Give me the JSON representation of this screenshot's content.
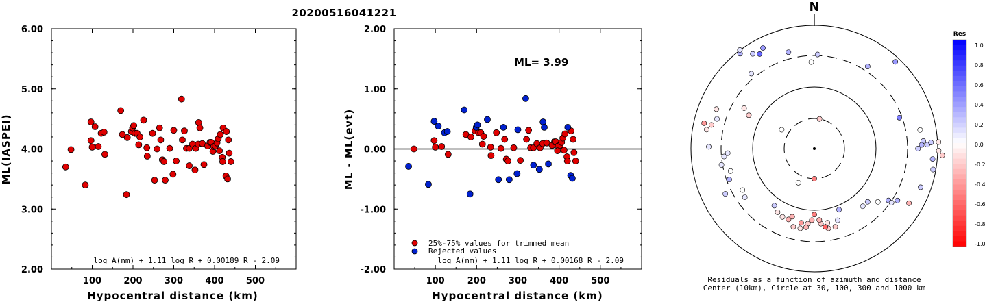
{
  "title": "20200516041221",
  "chart_data": [
    {
      "type": "scatter",
      "xlabel": "Hypocentral distance (km)",
      "ylabel": "ML(IASPEI)",
      "xlim": [
        0,
        600
      ],
      "ylim": [
        2,
        6
      ],
      "xticks": [
        100,
        200,
        300,
        400,
        500
      ],
      "xtick_labels": [
        "100",
        "200",
        "300",
        "400",
        "500"
      ],
      "yticks": [
        2,
        3,
        4,
        5,
        6
      ],
      "ytick_labels": [
        "2.00",
        "3.00",
        "4.00",
        "5.00",
        "6.00"
      ],
      "formula": "log A(nm) + 1.11 log R + 0.00189 R - 2.09",
      "points": [
        [
          35,
          3.7
        ],
        [
          48,
          3.99
        ],
        [
          83,
          3.4
        ],
        [
          97,
          4.45
        ],
        [
          97,
          4.14
        ],
        [
          100,
          4.03
        ],
        [
          107,
          4.37
        ],
        [
          115,
          4.04
        ],
        [
          122,
          4.26
        ],
        [
          129,
          4.28
        ],
        [
          131,
          3.91
        ],
        [
          170,
          4.64
        ],
        [
          174,
          4.24
        ],
        [
          184,
          3.24
        ],
        [
          186,
          4.19
        ],
        [
          196,
          4.29
        ],
        [
          199,
          4.35
        ],
        [
          202,
          4.39
        ],
        [
          205,
          4.26
        ],
        [
          210,
          4.26
        ],
        [
          214,
          4.07
        ],
        [
          217,
          4.2
        ],
        [
          226,
          4.48
        ],
        [
          234,
          4.02
        ],
        [
          235,
          3.88
        ],
        [
          248,
          4.26
        ],
        [
          253,
          3.48
        ],
        [
          259,
          4.0
        ],
        [
          265,
          4.35
        ],
        [
          268,
          4.15
        ],
        [
          272,
          3.82
        ],
        [
          276,
          3.79
        ],
        [
          279,
          3.48
        ],
        [
          290,
          4.01
        ],
        [
          298,
          3.58
        ],
        [
          300,
          4.31
        ],
        [
          306,
          3.8
        ],
        [
          319,
          4.83
        ],
        [
          321,
          4.15
        ],
        [
          326,
          4.3
        ],
        [
          331,
          4.01
        ],
        [
          338,
          3.72
        ],
        [
          338,
          4.01
        ],
        [
          346,
          4.08
        ],
        [
          352,
          3.65
        ],
        [
          354,
          4.01
        ],
        [
          360,
          4.08
        ],
        [
          361,
          4.44
        ],
        [
          364,
          4.35
        ],
        [
          370,
          4.09
        ],
        [
          374,
          3.74
        ],
        [
          383,
          4.05
        ],
        [
          389,
          4.11
        ],
        [
          392,
          4.11
        ],
        [
          396,
          3.96
        ],
        [
          398,
          4.04
        ],
        [
          402,
          4.05
        ],
        [
          406,
          4.1
        ],
        [
          409,
          4.17
        ],
        [
          412,
          3.97
        ],
        [
          414,
          4.24
        ],
        [
          419,
          3.86
        ],
        [
          420,
          3.79
        ],
        [
          421,
          4.35
        ],
        [
          428,
          3.55
        ],
        [
          429,
          4.29
        ],
        [
          432,
          3.5
        ],
        [
          434,
          4.15
        ],
        [
          436,
          3.93
        ],
        [
          440,
          3.79
        ]
      ]
    },
    {
      "type": "scatter",
      "xlabel": "Hypocentral distance (km)",
      "ylabel": "ML - ML(evt)",
      "xlim": [
        0,
        600
      ],
      "ylim": [
        -2,
        2
      ],
      "xticks": [
        100,
        200,
        300,
        400,
        500
      ],
      "xtick_labels": [
        "100",
        "200",
        "300",
        "400",
        "500"
      ],
      "yticks": [
        -2,
        -1,
        0,
        1,
        2
      ],
      "ytick_labels": [
        "-2.00",
        "-1.00",
        "0.00",
        "1.00",
        "2.00"
      ],
      "annotation": "ML= 3.99",
      "formula": "log A(nm) + 1.11 log R + 0.00168 R - 2.09",
      "legend": [
        {
          "label": "25%-75% values for trimmed mean",
          "color": "#e00000"
        },
        {
          "label": "Rejected values",
          "color": "#0020d0"
        }
      ],
      "series": [
        {
          "name": "25%-75% values for trimmed mean",
          "color": "#e00000",
          "points": [
            [
              48,
              0.0
            ],
            [
              97,
              0.14
            ],
            [
              100,
              0.03
            ],
            [
              115,
              0.04
            ],
            [
              131,
              -0.09
            ],
            [
              174,
              0.24
            ],
            [
              186,
              0.2
            ],
            [
              196,
              0.3
            ],
            [
              205,
              0.27
            ],
            [
              210,
              0.27
            ],
            [
              214,
              0.08
            ],
            [
              217,
              0.21
            ],
            [
              234,
              0.03
            ],
            [
              235,
              -0.11
            ],
            [
              248,
              0.27
            ],
            [
              259,
              0.01
            ],
            [
              268,
              0.16
            ],
            [
              272,
              -0.17
            ],
            [
              276,
              -0.2
            ],
            [
              290,
              0.02
            ],
            [
              306,
              -0.19
            ],
            [
              321,
              0.16
            ],
            [
              326,
              0.31
            ],
            [
              331,
              0.02
            ],
            [
              338,
              0.02
            ],
            [
              346,
              0.09
            ],
            [
              354,
              0.02
            ],
            [
              360,
              0.09
            ],
            [
              370,
              0.1
            ],
            [
              383,
              0.06
            ],
            [
              389,
              0.12
            ],
            [
              392,
              0.12
            ],
            [
              396,
              -0.03
            ],
            [
              398,
              0.05
            ],
            [
              402,
              0.06
            ],
            [
              406,
              0.11
            ],
            [
              409,
              0.18
            ],
            [
              412,
              -0.02
            ],
            [
              414,
              0.25
            ],
            [
              419,
              -0.13
            ],
            [
              420,
              -0.2
            ],
            [
              429,
              0.3
            ],
            [
              434,
              0.16
            ],
            [
              436,
              -0.06
            ],
            [
              440,
              -0.2
            ]
          ]
        },
        {
          "name": "Rejected values",
          "color": "#0020d0",
          "points": [
            [
              35,
              -0.29
            ],
            [
              83,
              -0.59
            ],
            [
              97,
              0.46
            ],
            [
              107,
              0.38
            ],
            [
              122,
              0.27
            ],
            [
              129,
              0.29
            ],
            [
              170,
              0.65
            ],
            [
              184,
              -0.75
            ],
            [
              199,
              0.36
            ],
            [
              202,
              0.4
            ],
            [
              226,
              0.49
            ],
            [
              253,
              -0.51
            ],
            [
              265,
              0.36
            ],
            [
              279,
              -0.51
            ],
            [
              298,
              -0.41
            ],
            [
              300,
              0.32
            ],
            [
              319,
              0.84
            ],
            [
              338,
              -0.27
            ],
            [
              352,
              -0.34
            ],
            [
              361,
              0.45
            ],
            [
              364,
              0.36
            ],
            [
              374,
              -0.25
            ],
            [
              421,
              0.36
            ],
            [
              428,
              -0.44
            ],
            [
              432,
              -0.49
            ]
          ]
        }
      ]
    },
    {
      "type": "scatter",
      "subtype": "polar-residuals",
      "north_label": "N",
      "caption_line1": "Residuals as a function of azimuth and distance",
      "caption_line2": "Center (10km), Circle at 30, 100, 300 and 1000 km",
      "colorbar_title": "Res",
      "colorbar_ticks": [
        "1.0",
        "0.8",
        "0.6",
        "0.4",
        "0.2",
        "0.0",
        "-0.2",
        "-0.4",
        "-0.6",
        "-0.8",
        "-1.0"
      ],
      "points_azimuth_distance_residual": [
        [
          322,
          320,
          0.3
        ],
        [
          323,
          328,
          0.1
        ],
        [
          327,
          300,
          0.2
        ],
        [
          320,
          260,
          0.1
        ],
        [
          333,
          300,
          0.4
        ],
        [
          330,
          290,
          0.6
        ],
        [
          345,
          265,
          0.3
        ],
        [
          358,
          230,
          0.0
        ],
        [
          2,
          250,
          0.2
        ],
        [
          33,
          260,
          0.3
        ],
        [
          43,
          315,
          0.4
        ],
        [
          10,
          80,
          -0.2
        ],
        [
          300,
          100,
          0.0
        ],
        [
          300,
          215,
          -0.1
        ],
        [
          297,
          195,
          -0.2
        ],
        [
          292,
          280,
          -0.1
        ],
        [
          283,
          300,
          -0.4
        ],
        [
          283,
          280,
          -0.2
        ],
        [
          280,
          290,
          -0.1
        ],
        [
          287,
          270,
          0.1
        ],
        [
          88,
          300,
          0.2
        ],
        [
          87,
          310,
          0.2
        ],
        [
          86,
          290,
          0.2
        ],
        [
          88,
          285,
          0.3
        ],
        [
          90,
          275,
          0.2
        ],
        [
          87,
          330,
          -0.1
        ],
        [
          91,
          330,
          -0.1
        ],
        [
          93,
          340,
          -0.2
        ],
        [
          95,
          315,
          0.3
        ],
        [
          70,
          240,
          0.5
        ],
        [
          80,
          285,
          0.0
        ],
        [
          100,
          320,
          0.2
        ],
        [
          110,
          300,
          0.2
        ],
        [
          120,
          290,
          -0.3
        ],
        [
          122,
          260,
          0.3
        ],
        [
          125,
          240,
          0.3
        ],
        [
          125,
          250,
          0.1
        ],
        [
          135,
          200,
          0.2
        ],
        [
          130,
          220,
          0.0
        ],
        [
          140,
          200,
          0.1
        ],
        [
          158,
          175,
          0.3
        ],
        [
          162,
          200,
          0.1
        ],
        [
          165,
          215,
          -0.2
        ],
        [
          170,
          215,
          -0.2
        ],
        [
          170,
          200,
          -0.1
        ],
        [
          172,
          210,
          -0.6
        ],
        [
          175,
          200,
          -0.2
        ],
        [
          176,
          190,
          -0.3
        ],
        [
          180,
          175,
          -0.5
        ],
        [
          182,
          190,
          -0.3
        ],
        [
          185,
          200,
          -0.2
        ],
        [
          186,
          210,
          -0.3
        ],
        [
          190,
          200,
          -0.4
        ],
        [
          190,
          215,
          -0.1
        ],
        [
          195,
          215,
          -0.2
        ],
        [
          198,
          190,
          -0.3
        ],
        [
          200,
          200,
          -0.3
        ],
        [
          205,
          200,
          -0.1
        ],
        [
          210,
          195,
          -0.1
        ],
        [
          215,
          185,
          0.2
        ],
        [
          235,
          225,
          0.1
        ],
        [
          240,
          220,
          0.0
        ],
        [
          243,
          265,
          0.2
        ],
        [
          250,
          240,
          0.3
        ],
        [
          255,
          230,
          0.0
        ],
        [
          260,
          250,
          0.1
        ],
        [
          265,
          240,
          0.1
        ],
        [
          267,
          230,
          0.1
        ],
        [
          271,
          280,
          0.1
        ],
        [
          180,
          80,
          -0.5
        ],
        [
          205,
          100,
          0.0
        ]
      ]
    }
  ]
}
